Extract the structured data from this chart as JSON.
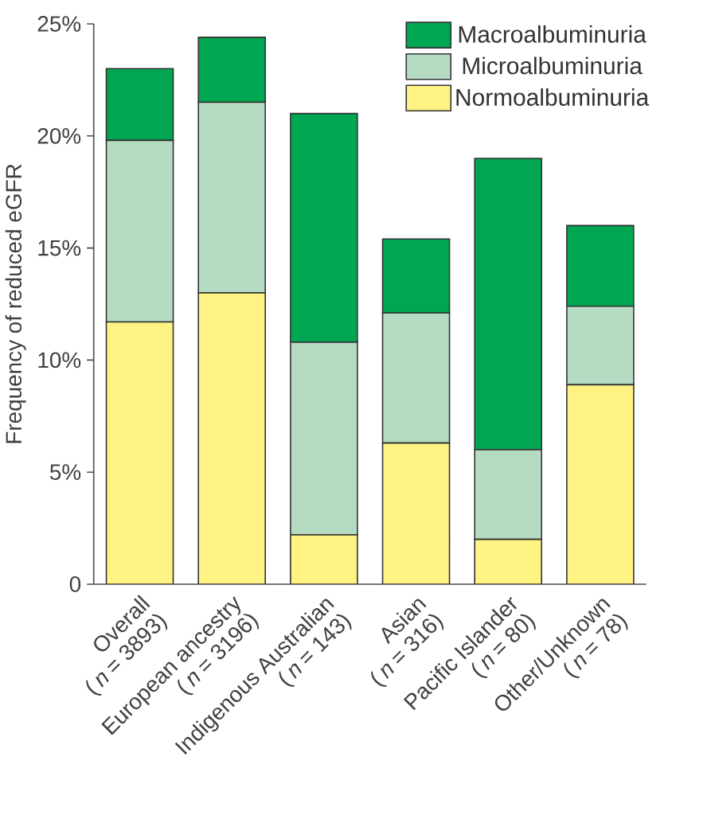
{
  "chart_data": {
    "type": "bar",
    "stacked": true,
    "ylabel": "Frequency of reduced eGFR",
    "categories": [
      "Overall (*n* = 3893)",
      "European ancestry (*n* = 3196)",
      "Indigenous Australian (*n* = 143)",
      "Asian (*n* = 316)",
      "Pacific Islander (*n* = 80)",
      "Other/Unknown (*n* = 78)"
    ],
    "series": [
      {
        "name": "Normoalbuminuria",
        "color": "#fff383",
        "values": [
          11.7,
          13.0,
          2.2,
          6.3,
          2.0,
          8.9
        ]
      },
      {
        "name": "Microalbuminuria",
        "color": "#b5dcc3",
        "values": [
          8.1,
          8.5,
          8.6,
          5.8,
          4.0,
          3.5
        ]
      },
      {
        "name": "Macroalbuminuria",
        "color": "#00a651",
        "values": [
          3.2,
          2.9,
          10.2,
          3.3,
          13.0,
          3.6
        ]
      }
    ],
    "ylim": [
      0,
      25
    ],
    "yticks": [
      {
        "value": 0,
        "label": "0"
      },
      {
        "value": 5,
        "label": "5%"
      },
      {
        "value": 10,
        "label": "10%"
      },
      {
        "value": 15,
        "label": "15%"
      },
      {
        "value": 20,
        "label": "20%"
      },
      {
        "value": 25,
        "label": "25%"
      }
    ],
    "legend": "top right",
    "grid": false
  }
}
